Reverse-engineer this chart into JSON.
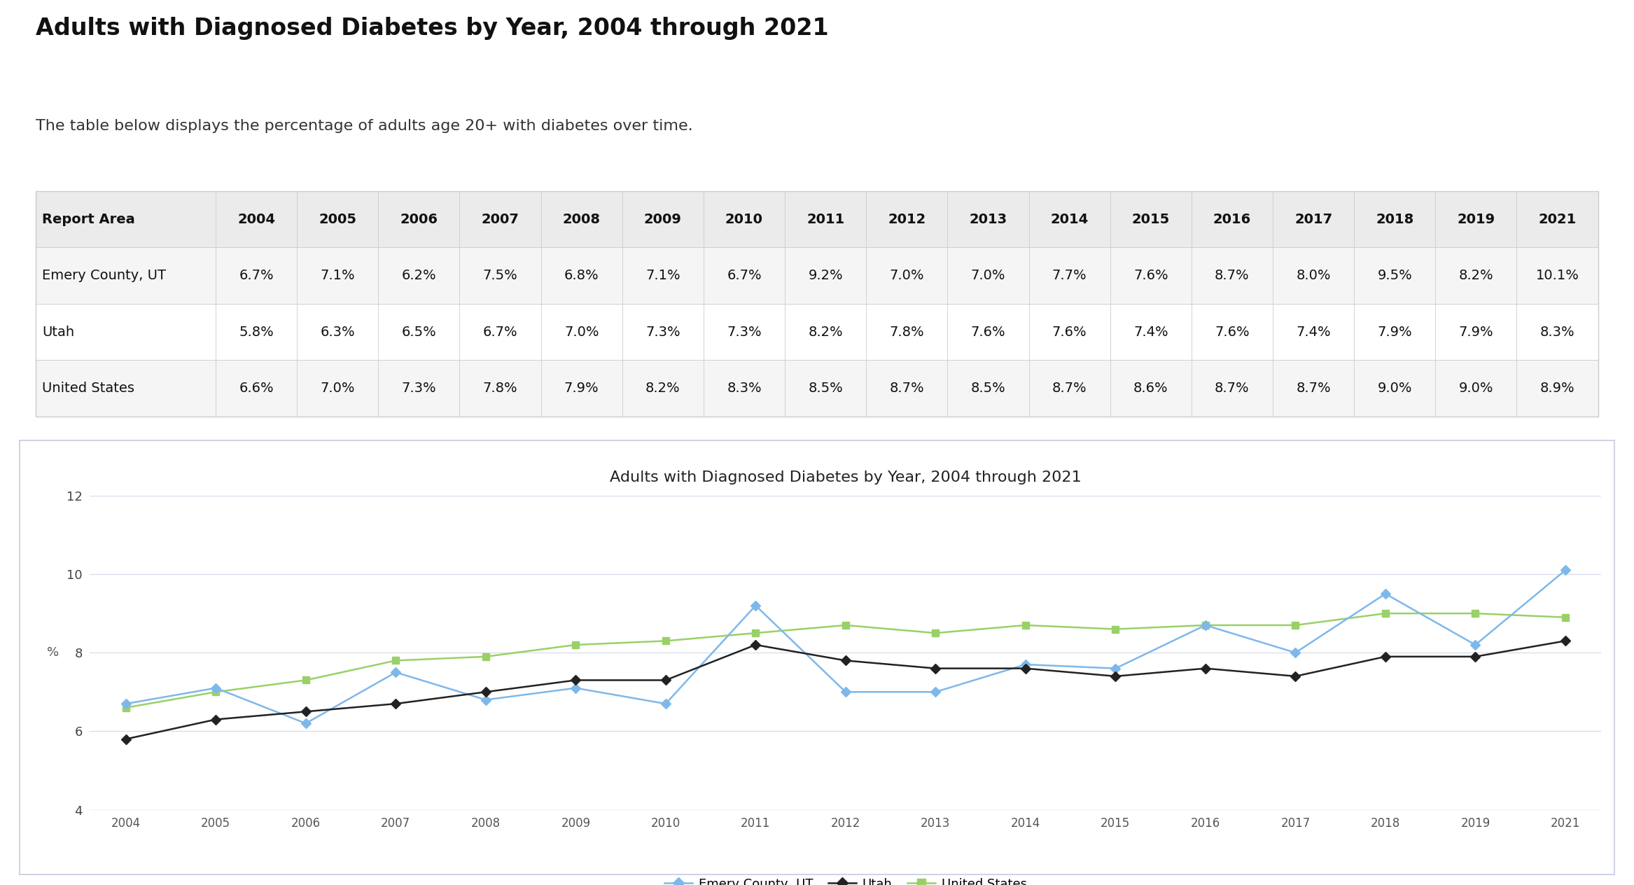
{
  "title": "Adults with Diagnosed Diabetes by Year, 2004 through 2021",
  "subtitle": "The table below displays the percentage of adults age 20+ with diabetes over time.",
  "chart_title": "Adults with Diagnosed Diabetes by Year, 2004 through 2021",
  "years": [
    2004,
    2005,
    2006,
    2007,
    2008,
    2009,
    2010,
    2011,
    2012,
    2013,
    2014,
    2015,
    2016,
    2017,
    2018,
    2019,
    2021
  ],
  "table_headers": [
    "Report Area",
    "2004",
    "2005",
    "2006",
    "2007",
    "2008",
    "2009",
    "2010",
    "2011",
    "2012",
    "2013",
    "2014",
    "2015",
    "2016",
    "2017",
    "2018",
    "2019",
    "2021"
  ],
  "rows": [
    {
      "name": "Emery County, UT",
      "values": [
        6.7,
        7.1,
        6.2,
        7.5,
        6.8,
        7.1,
        6.7,
        9.2,
        7.0,
        7.0,
        7.7,
        7.6,
        8.7,
        8.0,
        9.5,
        8.2,
        10.1
      ],
      "color": "#7eb8ea",
      "marker": "D",
      "marker_color": "#7eb8ea",
      "linewidth": 1.8,
      "zorder": 3
    },
    {
      "name": "Utah",
      "values": [
        5.8,
        6.3,
        6.5,
        6.7,
        7.0,
        7.3,
        7.3,
        8.2,
        7.8,
        7.6,
        7.6,
        7.4,
        7.6,
        7.4,
        7.9,
        7.9,
        8.3
      ],
      "color": "#222222",
      "marker": "D",
      "marker_color": "#222222",
      "linewidth": 1.8,
      "zorder": 4
    },
    {
      "name": "United States",
      "values": [
        6.6,
        7.0,
        7.3,
        7.8,
        7.9,
        8.2,
        8.3,
        8.5,
        8.7,
        8.5,
        8.7,
        8.6,
        8.7,
        8.7,
        9.0,
        9.0,
        8.9
      ],
      "color": "#99d166",
      "marker": "s",
      "marker_color": "#99d166",
      "linewidth": 1.8,
      "zorder": 2
    }
  ],
  "ylim": [
    4,
    12
  ],
  "yticks": [
    4,
    6,
    8,
    10,
    12
  ],
  "ylabel": "%",
  "background_color": "#ffffff",
  "chart_bg": "#ffffff",
  "grid_color": "#d8dce8",
  "table_header_bg": "#ebebeb",
  "table_row_bg1": "#ffffff",
  "table_row_bg2": "#f5f5f5",
  "border_color": "#cccccc",
  "chart_border_color": "#c8cce0"
}
